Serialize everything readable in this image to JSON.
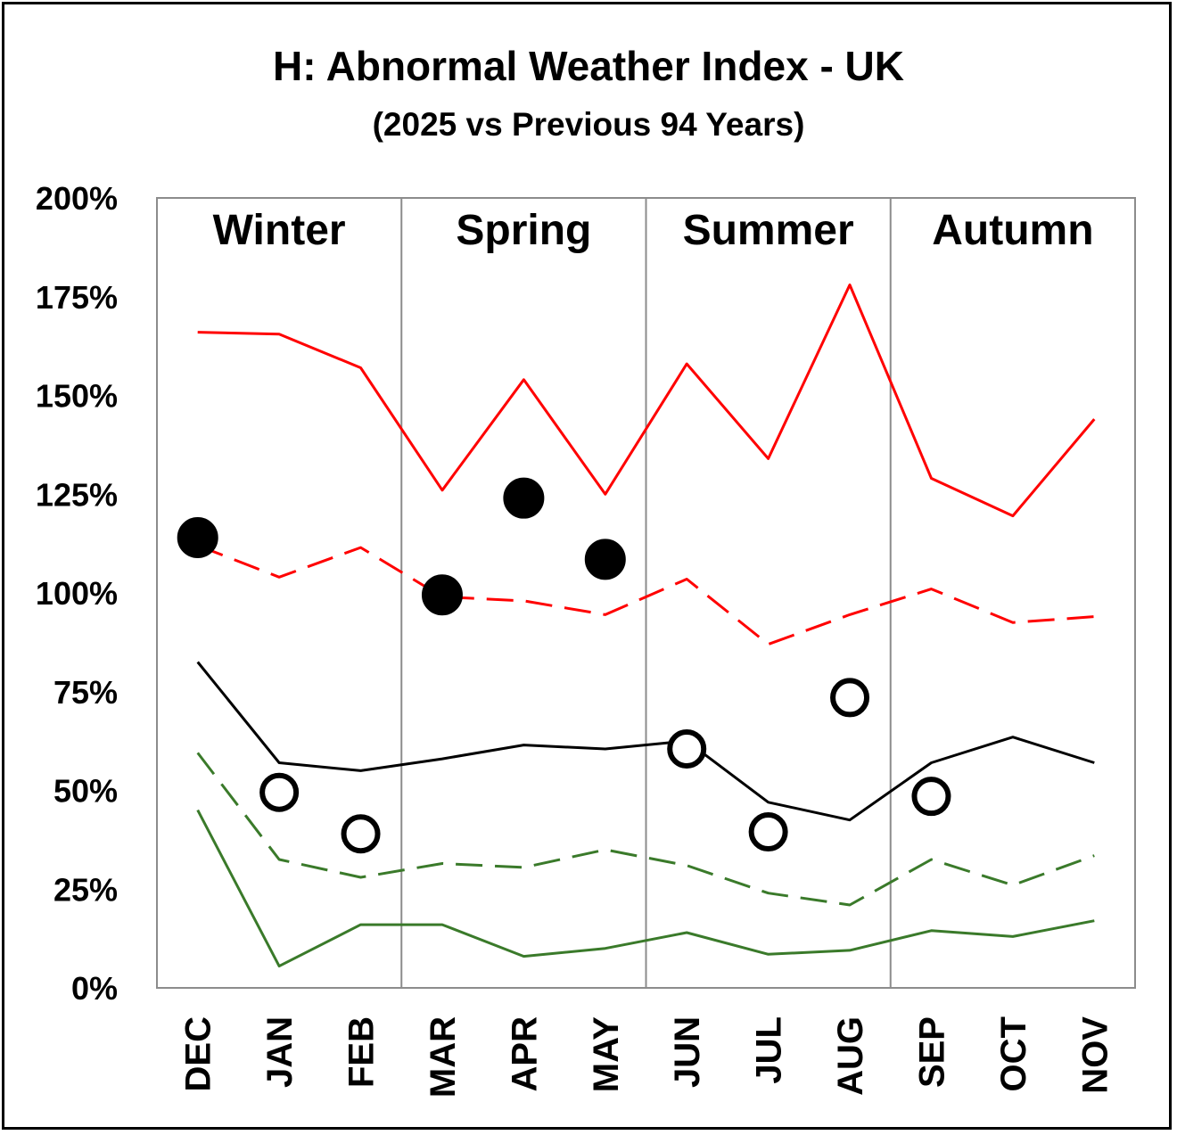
{
  "chart_data": {
    "type": "line",
    "title": "H: Abnormal Weather Index - UK",
    "subtitle": "(2025 vs Previous 94 Years)",
    "categories": [
      "DEC",
      "JAN",
      "FEB",
      "MAR",
      "APR",
      "MAY",
      "JUN",
      "JUL",
      "AUG",
      "SEP",
      "OCT",
      "NOV"
    ],
    "y_ticks": [
      "0%",
      "25%",
      "50%",
      "75%",
      "100%",
      "125%",
      "150%",
      "175%",
      "200%"
    ],
    "ylim": [
      0,
      200
    ],
    "grid": false,
    "seasons": [
      {
        "label": "Winter",
        "start": 0,
        "end": 2
      },
      {
        "label": "Spring",
        "start": 3,
        "end": 5
      },
      {
        "label": "Summer",
        "start": 6,
        "end": 8
      },
      {
        "label": "Autumn",
        "start": 9,
        "end": 11
      }
    ],
    "colors": {
      "red": "#ff0000",
      "black": "#000000",
      "green": "#3a7a2a",
      "divider": "#8c8c8c"
    },
    "series": [
      {
        "style": "solid",
        "color": "red",
        "values": [
          166,
          165.5,
          157,
          126,
          154,
          125,
          158,
          134,
          178,
          129,
          119.5,
          144
        ]
      },
      {
        "style": "dashed",
        "color": "red",
        "values": [
          112,
          104,
          111.5,
          99,
          98,
          94.5,
          103.5,
          87,
          94.5,
          101,
          92.5,
          94
        ]
      },
      {
        "style": "solid",
        "color": "black",
        "values": [
          82.5,
          57,
          55,
          58,
          61.5,
          60.5,
          62.5,
          47,
          42.5,
          57,
          63.5,
          57
        ]
      },
      {
        "style": "dashed",
        "color": "green",
        "values": [
          59.5,
          32.5,
          28,
          31.5,
          30.5,
          35,
          31,
          24,
          21,
          32.5,
          26,
          33.5
        ]
      },
      {
        "style": "solid",
        "color": "green",
        "values": [
          45,
          5.5,
          16,
          16,
          8,
          10,
          14,
          8.5,
          9.5,
          14.5,
          13,
          17
        ]
      }
    ],
    "markers": [
      {
        "month": 0,
        "value": 114,
        "filled": true
      },
      {
        "month": 1,
        "value": 49.5,
        "filled": false
      },
      {
        "month": 2,
        "value": 39,
        "filled": false
      },
      {
        "month": 3,
        "value": 99.5,
        "filled": true
      },
      {
        "month": 4,
        "value": 124,
        "filled": true
      },
      {
        "month": 5,
        "value": 108.5,
        "filled": true
      },
      {
        "month": 6,
        "value": 60.5,
        "filled": false
      },
      {
        "month": 7,
        "value": 39.5,
        "filled": false
      },
      {
        "month": 8,
        "value": 73.5,
        "filled": false
      },
      {
        "month": 9,
        "value": 48.5,
        "filled": false
      }
    ]
  }
}
